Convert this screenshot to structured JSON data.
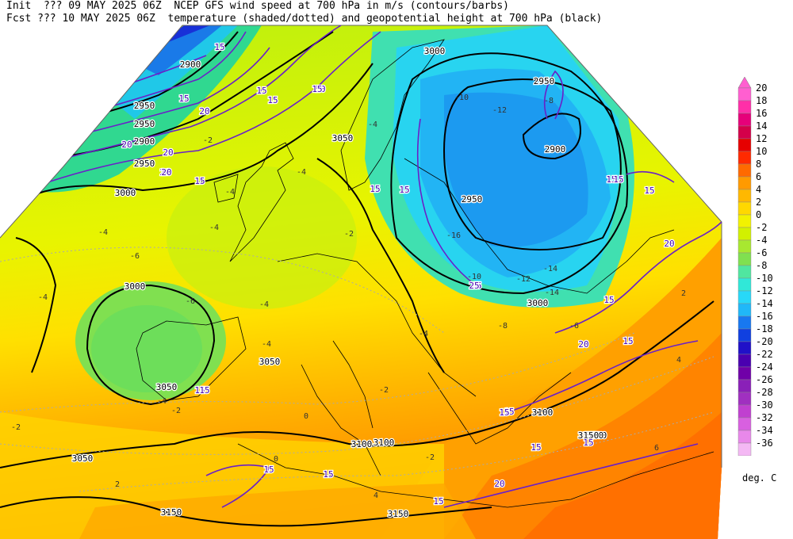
{
  "header": {
    "line1_left": "Init  ??? 09 MAY 2025 06Z",
    "line1_right": "NCEP GFS wind speed at 700 hPa in m/s (contours/barbs)",
    "line2_left": "Fcst ??? 10 MAY 2025 06Z",
    "line2_right": "temperature (shaded/dotted) and geopotential height at 700 hPa (black)"
  },
  "legend": {
    "labels": [
      "20",
      "18",
      "16",
      "14",
      "12",
      "10",
      "8",
      "6",
      "4",
      "2",
      "0",
      "-2",
      "-4",
      "-6",
      "-8",
      "-10",
      "-12",
      "-14",
      "-16",
      "-18",
      "-20",
      "-22",
      "-24",
      "-26",
      "-28",
      "-30",
      "-32",
      "-34",
      "-36"
    ],
    "colors": [
      "#ff5fd0",
      "#ff2fa8",
      "#e6007a",
      "#d4004a",
      "#e60000",
      "#ff2a00",
      "#ff6a00",
      "#ff9a00",
      "#ffb800",
      "#ffd800",
      "#f2f200",
      "#d2f000",
      "#a8e830",
      "#80e050",
      "#50e6a0",
      "#30e8d8",
      "#28d8f8",
      "#20b8f8",
      "#1878f0",
      "#1040e0",
      "#2010c8",
      "#4a00b0",
      "#7000a8",
      "#8a20b8",
      "#a030c0",
      "#c040d0",
      "#d860e0",
      "#e888ea",
      "#f4b8f4"
    ],
    "unit": "deg. C"
  },
  "map_labels": {
    "height": [
      "3000",
      "2950",
      "2900",
      "3050",
      "3100",
      "3150",
      "2950",
      "2900",
      "2950",
      "3000",
      "3000",
      "3050",
      "3050",
      "3100",
      "3150",
      "3050",
      "3000",
      "3100",
      "3150",
      "3150",
      "2950",
      "2900",
      "2950",
      "3100"
    ],
    "wind": [
      "15",
      "20",
      "20",
      "20",
      "20",
      "15",
      "15",
      "15",
      "15",
      "20",
      "20",
      "15",
      "15",
      "15",
      "15",
      "15",
      "15",
      "15",
      "20",
      "15",
      "20",
      "15",
      "15",
      "15",
      "15",
      "15",
      "20",
      "15",
      "25",
      "15",
      "15",
      "15",
      "15"
    ],
    "temp": [
      "-4",
      "-4",
      "-4",
      "-6",
      "-6",
      "-4",
      "-4",
      "-4",
      "-2",
      "-2",
      "-2",
      "0",
      "0",
      "2",
      "2",
      "4",
      "4",
      "6",
      "-2",
      "-4",
      "-4",
      "-8",
      "-10",
      "-12",
      "-14",
      "-16",
      "-12",
      "-14",
      "-10",
      "-8",
      "-6",
      "-4",
      "-4",
      "-2",
      "-2"
    ]
  }
}
